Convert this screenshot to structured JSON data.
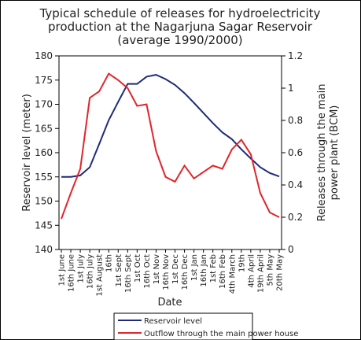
{
  "chart_data": {
    "type": "line",
    "title": [
      "Typical schedule of releases for hydroelectricity",
      "production at the Nagarjuna Sagar Reservoir",
      "(average 1990/2000)"
    ],
    "x_label": "Date",
    "y_label": "Reservoir level (meter)",
    "y2_label": [
      "Releases through the main",
      "power plant (BCM)"
    ],
    "categories": [
      "1st June",
      "16th June",
      "1st July",
      "16th July",
      "1st August",
      "16th",
      "1st Sept",
      "16th Sept",
      "1st Oct",
      "16th Oct",
      "1st Nov",
      "16th Nov",
      "1st Dec",
      "16th Dec",
      "1st Jan",
      "16th Jan",
      "1st Feb",
      "16th Feb",
      "4th March",
      "19th",
      "4th April",
      "19th April",
      "5th May",
      "20th May"
    ],
    "ylim": [
      140,
      180
    ],
    "yticks": [
      140,
      145,
      150,
      155,
      160,
      165,
      170,
      175,
      180
    ],
    "y2lim": [
      0,
      1.2
    ],
    "y2ticks": [
      0,
      0.2,
      0.4,
      0.6,
      0.8,
      1,
      1.2
    ],
    "series": [
      {
        "name": "Reservoir level",
        "color": "#1f2a7a",
        "values": [
          155,
          155,
          155.3,
          157,
          161.8,
          166.7,
          170.5,
          174.2,
          174.2,
          175.7,
          176.1,
          175.2,
          174,
          172.3,
          170.3,
          168.2,
          166.1,
          164.2,
          162.8,
          160.7,
          158.8,
          157,
          155.8,
          155.1
        ]
      },
      {
        "name": "Outflow through the main power house",
        "color": "#e3242b",
        "axis": "y2",
        "values": [
          0.19,
          0.35,
          0.5,
          0.94,
          0.98,
          1.09,
          1.05,
          1.0,
          0.89,
          0.9,
          0.61,
          0.45,
          0.42,
          0.52,
          0.44,
          0.48,
          0.52,
          0.5,
          0.62,
          0.68,
          0.59,
          0.35,
          0.23,
          0.2
        ]
      }
    ]
  }
}
